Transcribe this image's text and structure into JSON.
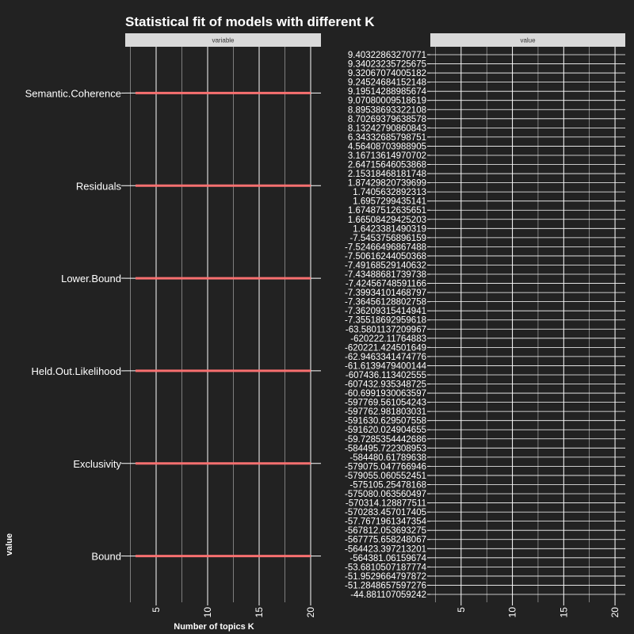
{
  "chart_data": {
    "type": "line",
    "title": "Statistical fit of models with different K",
    "xlabel": "Number of topics K",
    "ylabel": "value",
    "xlim": [
      2,
      21
    ],
    "x_ticks": [
      5,
      10,
      15,
      20
    ],
    "panels": [
      {
        "strip": "variable",
        "y_type": "categorical"
      },
      {
        "strip": "value",
        "y_type": "categorical"
      }
    ],
    "categories": [
      "Semantic.Coherence",
      "Residuals",
      "Lower.Bound",
      "Held.Out.Likelihood",
      "Exclusivity",
      "Bound"
    ],
    "value_labels": [
      "9.40322863270771",
      "9.34023235725675",
      "9.32067074005182",
      "9.24524684152148",
      "9.19514288985674",
      "9.07080009518619",
      "8.89538693322108",
      "8.70269379638578",
      "8.13242790860843",
      "6.34332685798751",
      "4.56408703988905",
      "3.16713614970702",
      "2.64715646053868",
      "2.15318468181748",
      "1.87429820739699",
      "1.7405632892313",
      "1.6957299435141",
      "1.67487512635651",
      "1.66508429425203",
      "1.6423381490319",
      "-7.5453756896159",
      "-7.52466496867488",
      "-7.50616244050368",
      "-7.49168529140632",
      "-7.43488681739738",
      "-7.42456748591166",
      "-7.39934101468797",
      "-7.36456128802758",
      "-7.36209315414941",
      "-7.35518692959618",
      "-63.5801137209967",
      "-620222.11764883",
      "-620221.424501649",
      "-62.9463341474776",
      "-61.6139479400144",
      "-607436.113402555",
      "-607432.935348725",
      "-60.6991930063597",
      "-597769.561054243",
      "-597762.981803031",
      "-591630.629507558",
      "-591620.024904655",
      "-59.7285354442686",
      "-584495.722308953",
      "-584480.61789638",
      "-579075.047766946",
      "-579055.060552451",
      "-575105.25478168",
      "-575080.063560497",
      "-570314.128877511",
      "-570283.457017405",
      "-57.7671961347354",
      "-567812.053693275",
      "-567775.658248067",
      "-564423.397213201",
      "-564381.06159674",
      "-53.6810507187774",
      "-51.9529664797872",
      "-51.2848657597276",
      "-44.881107059242"
    ],
    "series": [
      {
        "name": "Semantic.Coherence",
        "x": [
          3,
          20
        ],
        "y": [
          "Semantic.Coherence",
          "Semantic.Coherence"
        ]
      },
      {
        "name": "Residuals",
        "x": [
          3,
          20
        ],
        "y": [
          "Residuals",
          "Residuals"
        ]
      },
      {
        "name": "Lower.Bound",
        "x": [
          3,
          20
        ],
        "y": [
          "Lower.Bound",
          "Lower.Bound"
        ]
      },
      {
        "name": "Held.Out.Likelihood",
        "x": [
          3,
          20
        ],
        "y": [
          "Held.Out.Likelihood",
          "Held.Out.Likelihood"
        ]
      },
      {
        "name": "Exclusivity",
        "x": [
          3,
          20
        ],
        "y": [
          "Exclusivity",
          "Exclusivity"
        ]
      },
      {
        "name": "Bound",
        "x": [
          3,
          20
        ],
        "y": [
          "Bound",
          "Bound"
        ]
      }
    ],
    "line_color": "#f87070",
    "background_color": "#222222",
    "grid_color": "#ffffff",
    "strip_color": "#d9d9d9",
    "grid": true,
    "legend": "none"
  }
}
